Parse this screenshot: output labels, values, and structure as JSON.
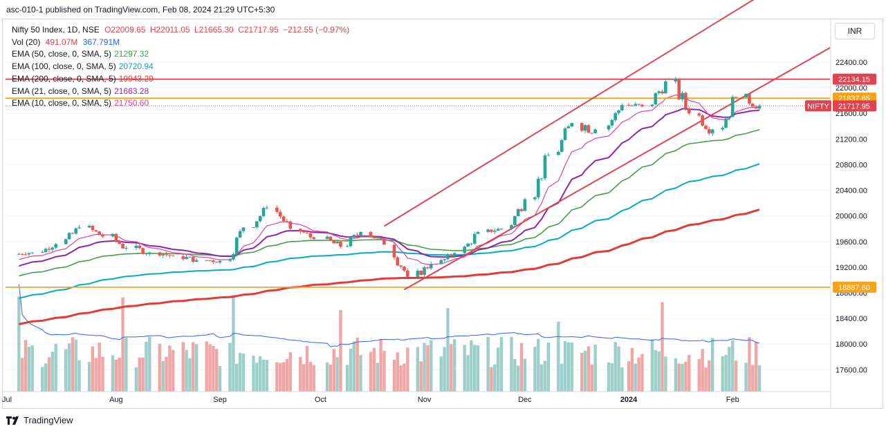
{
  "header": {
    "published": "asc-010-1 published on TradingView.com, Feb 08, 2024 21:29 UTC+5:30"
  },
  "legend": {
    "symbol": {
      "name": "Nifty 50 Index, 1D, NSE",
      "o": "O22009.65",
      "h": "H22011.05",
      "l": "L21665.30",
      "c": "C21717.95",
      "chg": "−212.55 (−0.97%)"
    },
    "volume": {
      "label": "Vol (20)",
      "v1": "491.07M",
      "v2": "367.791M",
      "c1": "#e0434f",
      "c2": "#2962ff"
    },
    "ema": [
      {
        "label": "EMA (50, close, 0, SMA, 5)",
        "value": "21297.32",
        "color": "#43a047"
      },
      {
        "label": "EMA (100, close, 0, SMA, 5)",
        "value": "20720.94",
        "color": "#00acc1"
      },
      {
        "label": "EMA (200, close, 0, SMA, 5)",
        "value": "19943.29",
        "color": "#e53935"
      },
      {
        "label": "EMA (21, close, 0, SMA, 5)",
        "value": "21663.28",
        "color": "#9c27b0"
      },
      {
        "label": "EMA (10, close, 0, SMA, 5)",
        "value": "21750.60",
        "color": "#e040a0"
      }
    ]
  },
  "currency": "INR",
  "footer": {
    "brand": "TradingView"
  },
  "chart_data": {
    "type": "candlestick",
    "symbol": "NIFTY",
    "price_axis": {
      "ticks": [
        "22400.00",
        "22000.00",
        "21600.00",
        "21200.00",
        "20800.00",
        "20400.00",
        "20000.00",
        "19600.00",
        "19200.00",
        "18800.00",
        "18400.00",
        "18000.00",
        "17600.00"
      ],
      "range": [
        17350,
        22850
      ]
    },
    "time_axis": [
      "Jul",
      "Aug",
      "Sep",
      "Oct",
      "Nov",
      "Dec",
      "2024",
      "Feb"
    ],
    "price_labels": [
      {
        "text": "22134.15",
        "price": 22134.15,
        "color": "#e0434f",
        "kind": "hline"
      },
      {
        "text": "21837.65",
        "price": 21837.65,
        "color": "#f7a21b",
        "kind": "hline"
      },
      {
        "text": "21717.95",
        "price": 21717.95,
        "color": "#e0434f",
        "kind": "last",
        "tag": "NIFTY"
      },
      {
        "text": "18887.60",
        "price": 18887.6,
        "color": "#f7a21b",
        "kind": "hline"
      }
    ],
    "trend_lines": [
      {
        "from": [
          "2023-10-20",
          19840
        ],
        "to": [
          "2024-02-08",
          23650
        ],
        "color": "#e0434f"
      },
      {
        "from": [
          "2023-10-26",
          18850
        ],
        "to": [
          "2024-02-08",
          22220
        ],
        "color": "#e0434f"
      }
    ],
    "candles_approx": [
      [
        "2023-07-03",
        19400,
        19480,
        19350,
        19430
      ],
      [
        "2023-07-10",
        19430,
        19600,
        19380,
        19560
      ],
      [
        "2023-07-17",
        19560,
        19900,
        19500,
        19820
      ],
      [
        "2023-07-24",
        19820,
        20000,
        19600,
        19680
      ],
      [
        "2023-07-31",
        19680,
        19800,
        19330,
        19500
      ],
      [
        "2023-08-07",
        19500,
        19620,
        19320,
        19430
      ],
      [
        "2023-08-14",
        19430,
        19500,
        19300,
        19370
      ],
      [
        "2023-08-21",
        19370,
        19500,
        19250,
        19310
      ],
      [
        "2023-08-28",
        19310,
        19450,
        19220,
        19300
      ],
      [
        "2023-09-04",
        19300,
        19900,
        19290,
        19820
      ],
      [
        "2023-09-11",
        19820,
        20200,
        19800,
        20130
      ],
      [
        "2023-09-18",
        20130,
        20220,
        19750,
        19800
      ],
      [
        "2023-09-25",
        19800,
        19900,
        19580,
        19640
      ],
      [
        "2023-10-03",
        19640,
        19700,
        19350,
        19520
      ],
      [
        "2023-10-09",
        19520,
        19850,
        19450,
        19750
      ],
      [
        "2023-10-16",
        19750,
        19850,
        19500,
        19550
      ],
      [
        "2023-10-23",
        19550,
        19600,
        18850,
        19050
      ],
      [
        "2023-10-30",
        19050,
        19300,
        18950,
        19250
      ],
      [
        "2023-11-06",
        19250,
        19450,
        19200,
        19420
      ],
      [
        "2023-11-13",
        19420,
        19800,
        19400,
        19750
      ],
      [
        "2023-11-20",
        19750,
        19900,
        19700,
        19800
      ],
      [
        "2023-11-27",
        19800,
        20300,
        19780,
        20260
      ],
      [
        "2023-12-04",
        20260,
        21000,
        20250,
        20950
      ],
      [
        "2023-12-11",
        20950,
        21500,
        20750,
        21450
      ],
      [
        "2023-12-18",
        21450,
        21600,
        20950,
        21350
      ],
      [
        "2023-12-26",
        21350,
        21800,
        21330,
        21730
      ],
      [
        "2024-01-01",
        21730,
        21800,
        21500,
        21710
      ],
      [
        "2024-01-08",
        21710,
        22150,
        21500,
        22100
      ],
      [
        "2024-01-15",
        22100,
        22150,
        21300,
        21600
      ],
      [
        "2024-01-22",
        21600,
        21800,
        21150,
        21350
      ],
      [
        "2024-01-29",
        21350,
        22130,
        21300,
        21850
      ],
      [
        "2024-02-05",
        21850,
        22130,
        21650,
        21717.95
      ]
    ],
    "ema_last": {
      "ema10": 21750.6,
      "ema21": 21663.28,
      "ema50": 21297.32,
      "ema100": 20720.94,
      "ema200": 19943.29
    },
    "volume_axis_note": "overlay",
    "volume_last": {
      "vol": "491.07M",
      "ma": "367.791M"
    }
  }
}
